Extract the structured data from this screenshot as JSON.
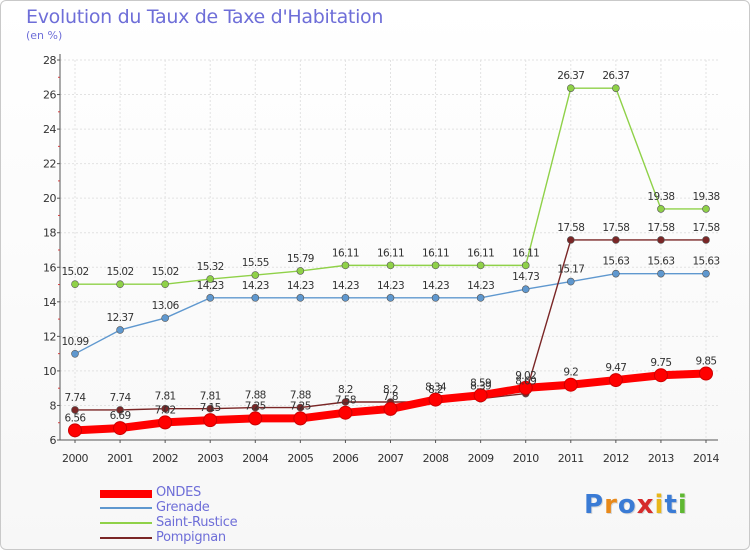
{
  "title": "Evolution du Taux de Taxe d'Habitation",
  "subtitle": "(en %)",
  "logo": {
    "text": "Proxiti",
    "colors": [
      "#3a7bd5",
      "#e8891a",
      "#3a7bd5",
      "#d62b2b",
      "#e8b71a",
      "#3a7bd5",
      "#5fb832"
    ]
  },
  "chart_data": {
    "type": "line",
    "title": "Evolution du Taux de Taxe d'Habitation",
    "ylabel": "(en %)",
    "x": [
      "2000",
      "2001",
      "2002",
      "2003",
      "2004",
      "2005",
      "2006",
      "2007",
      "2008",
      "2009",
      "2010",
      "2011",
      "2012",
      "2013",
      "2014"
    ],
    "ylim": [
      6,
      28
    ],
    "yticks": [
      "6",
      "8",
      "10",
      "12",
      "14",
      "16",
      "18",
      "20",
      "22",
      "24",
      "26",
      "28"
    ],
    "grid": true,
    "legend_position": "bottom-left",
    "series": [
      {
        "name": "ONDES",
        "color": "#ff0000",
        "values": [
          6.56,
          6.69,
          7.02,
          7.15,
          7.25,
          7.25,
          7.58,
          7.8,
          8.34,
          8.59,
          9.02,
          9.2,
          9.47,
          9.75,
          9.85
        ],
        "labels": [
          "6.56",
          "6.69",
          "7.02",
          "7.15",
          "7.25",
          "7.25",
          "7.58",
          "7.8",
          "8.34",
          "8.59",
          "9.02",
          "9.2",
          "9.47",
          "9.75",
          "9.85"
        ]
      },
      {
        "name": "Grenade",
        "color": "#5f98cf",
        "values": [
          10.99,
          12.37,
          13.06,
          14.23,
          14.23,
          14.23,
          14.23,
          14.23,
          14.23,
          14.23,
          14.73,
          15.17,
          15.63,
          15.63,
          15.63
        ],
        "labels": [
          "10.99",
          "12.37",
          "13.06",
          "14.23",
          "14.23",
          "14.23",
          "14.23",
          "14.23",
          "14.23",
          "14.23",
          "14.73",
          "15.17",
          "15.63",
          "15.63",
          "15.63"
        ]
      },
      {
        "name": "Saint-Rustice",
        "color": "#8fd148",
        "values": [
          15.02,
          15.02,
          15.02,
          15.32,
          15.55,
          15.79,
          16.11,
          16.11,
          16.11,
          16.11,
          16.11,
          26.37,
          26.37,
          19.38,
          19.38
        ],
        "labels": [
          "15.02",
          "15.02",
          "15.02",
          "15.32",
          "15.55",
          "15.79",
          "16.11",
          "16.11",
          "16.11",
          "16.11",
          "16.11",
          "26.37",
          "26.37",
          "19.38",
          "19.38"
        ]
      },
      {
        "name": "Pompignan",
        "color": "#7a2626",
        "values": [
          7.74,
          7.74,
          7.81,
          7.81,
          7.88,
          7.88,
          8.2,
          8.2,
          8.2,
          8.39,
          8.69,
          17.58,
          17.58,
          17.58,
          17.58
        ],
        "labels": [
          "7.74",
          "7.74",
          "7.81",
          "7.81",
          "7.88",
          "7.88",
          "8.2",
          "8.2",
          "8.2",
          "8.39",
          "8.69",
          "17.58",
          "17.58",
          "17.58",
          "17.58"
        ]
      }
    ]
  },
  "legend": {
    "items": [
      {
        "label": "ONDES",
        "color": "#ff0000"
      },
      {
        "label": "Grenade",
        "color": "#5f98cf"
      },
      {
        "label": "Saint-Rustice",
        "color": "#8fd148"
      },
      {
        "label": "Pompignan",
        "color": "#7a2626"
      }
    ]
  }
}
